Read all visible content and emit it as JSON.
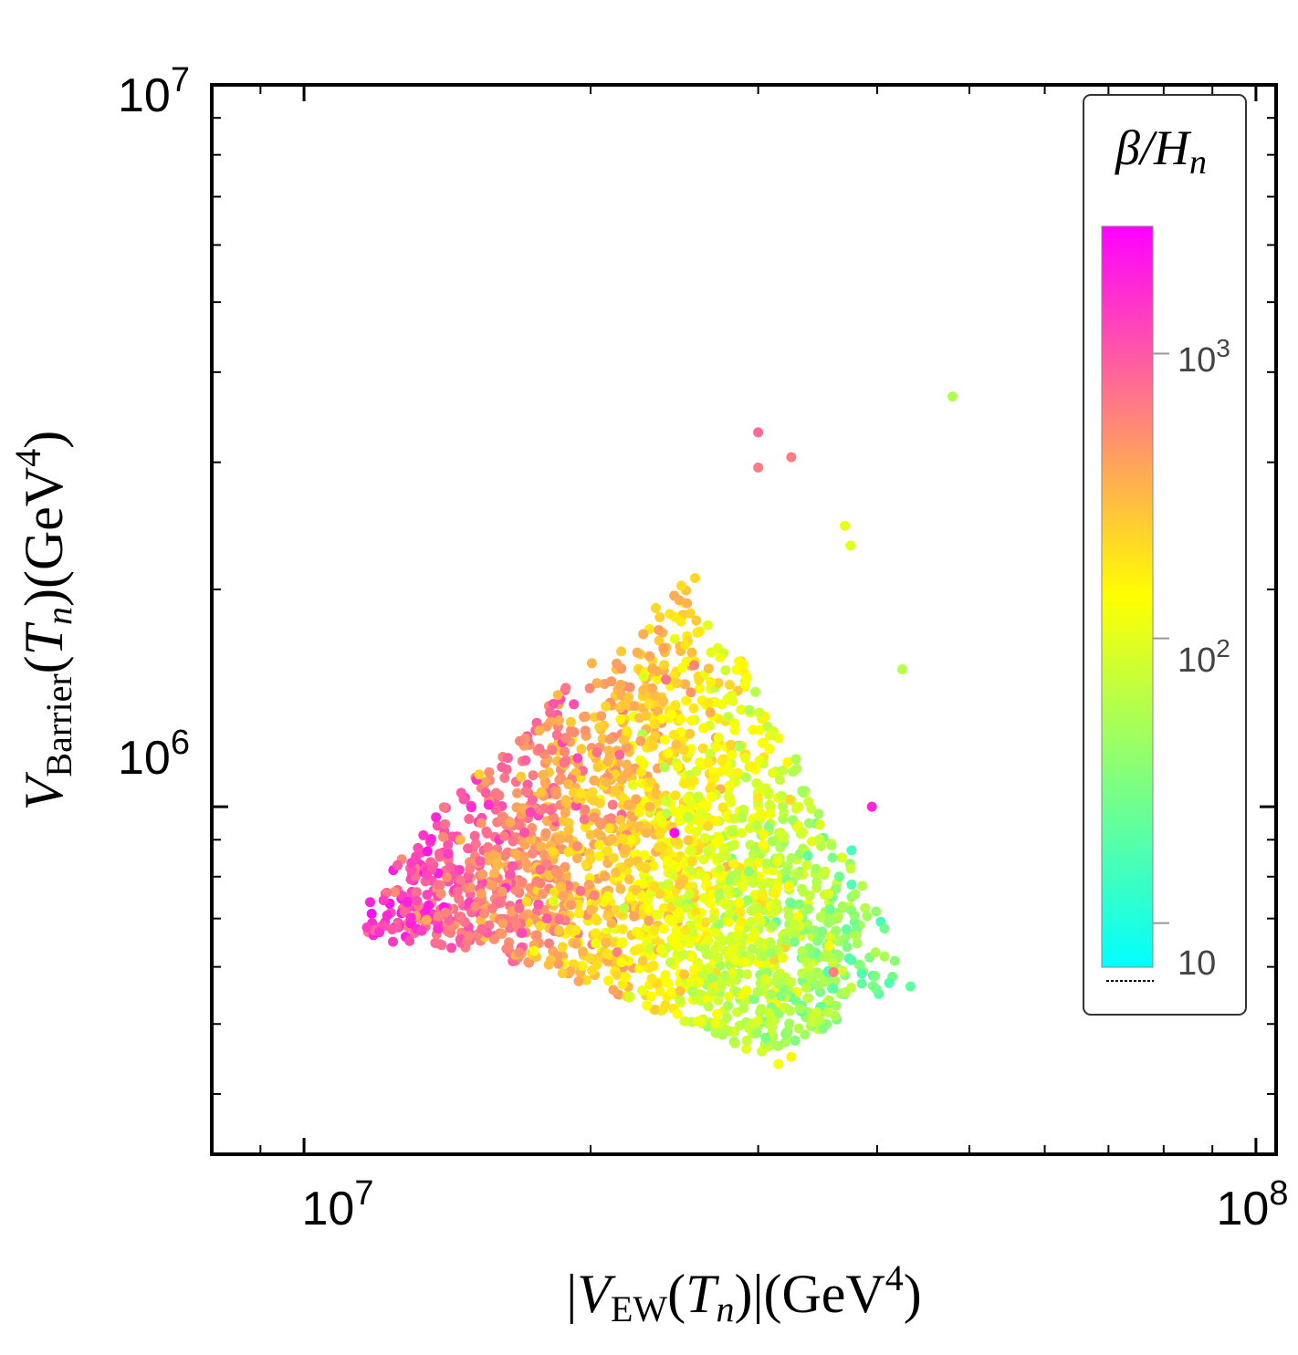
{
  "chart_data": {
    "type": "scatter",
    "title": "",
    "xscale": "log",
    "yscale": "log",
    "xlim": [
      8000000,
      105000000
    ],
    "ylim": [
      330000,
      10000000
    ],
    "x_ticks": [
      {
        "value": 10000000,
        "base": "10",
        "exp": "7"
      },
      {
        "value": 100000000,
        "base": "10",
        "exp": "8"
      }
    ],
    "y_ticks": [
      {
        "value": 1000000,
        "base": "10",
        "exp": "6"
      },
      {
        "value": 10000000,
        "base": "10",
        "exp": "7"
      }
    ],
    "xlabel": {
      "pre": "|",
      "var": "V",
      "sub": "EW",
      "mid": "(",
      "arg": "T",
      "argsub": "n",
      "post": ")|(GeV",
      "sup": "4",
      "end": ")"
    },
    "ylabel": {
      "var": "V",
      "sub": "Barrier",
      "mid": "(",
      "arg": "T",
      "argsub": "n",
      "post": ")(GeV",
      "sup": "4",
      "end": ")"
    },
    "colorbar": {
      "title": "β/H",
      "title_sub": "n",
      "scale": "log",
      "range": [
        7,
        2800
      ],
      "colors": [
        "#00ffff",
        "#ffff00",
        "#ff00ff"
      ],
      "ticks": [
        {
          "value": 10,
          "label": "10",
          "exp": ""
        },
        {
          "value": 100,
          "base": "10",
          "exp": "2"
        },
        {
          "value": 1000,
          "base": "10",
          "exp": "3"
        }
      ]
    },
    "highlight_points": [
      {
        "x": 48000000,
        "y": 3700000,
        "c": 55
      },
      {
        "x": 30000000,
        "y": 3300000,
        "c": 800
      },
      {
        "x": 32500000,
        "y": 3050000,
        "c": 650
      },
      {
        "x": 30000000,
        "y": 2950000,
        "c": 650
      },
      {
        "x": 37000000,
        "y": 2450000,
        "c": 110
      },
      {
        "x": 37500000,
        "y": 2300000,
        "c": 100
      },
      {
        "x": 42500000,
        "y": 1550000,
        "c": 60
      },
      {
        "x": 39500000,
        "y": 1000000,
        "c": 1800
      },
      {
        "x": 24500000,
        "y": 920000,
        "c": 2500
      },
      {
        "x": 12000000,
        "y": 670000,
        "c": 1600
      },
      {
        "x": 12400000,
        "y": 650000,
        "c": 1400
      },
      {
        "x": 37600000,
        "y": 870000,
        "c": 16
      },
      {
        "x": 37600000,
        "y": 780000,
        "c": 18
      },
      {
        "x": 36500000,
        "y": 800000,
        "c": 25
      },
      {
        "x": 31500000,
        "y": 440000,
        "c": 130
      },
      {
        "x": 32500000,
        "y": 450000,
        "c": 160
      },
      {
        "x": 35500000,
        "y": 590000,
        "c": 18
      },
      {
        "x": 36000000,
        "y": 590000,
        "c": 600
      },
      {
        "x": 24000000,
        "y": 1500000,
        "c": 700
      },
      {
        "x": 18000000,
        "y": 700000,
        "c": 1000
      }
    ],
    "cloud": {
      "count": 2300,
      "xrange": [
        11500000,
        44000000
      ],
      "yrange": [
        450000,
        2200000
      ]
    }
  }
}
